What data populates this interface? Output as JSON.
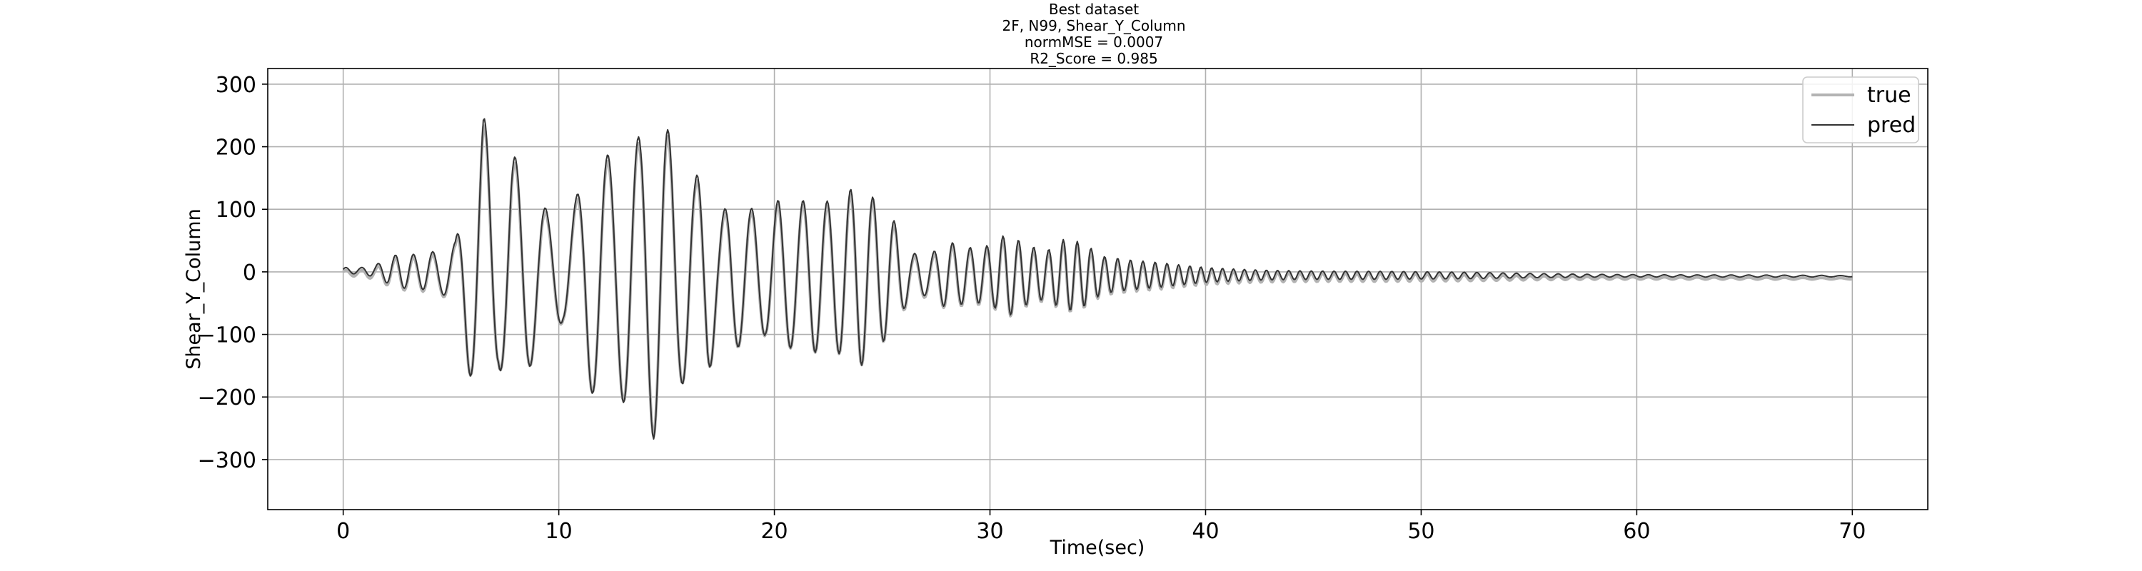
{
  "chart_data": {
    "type": "line",
    "title_lines": [
      "Best dataset",
      "2F, N99, Shear_Y_Column",
      "normMSE = 0.0007",
      "R2_Score = 0.985"
    ],
    "xlabel": "Time(sec)",
    "ylabel": "Shear_Y_Column",
    "xlim": [
      -3.5,
      73.5
    ],
    "ylim": [
      -380,
      325
    ],
    "x_ticks": [
      0,
      10,
      20,
      30,
      40,
      50,
      60,
      70
    ],
    "y_ticks": [
      300,
      200,
      100,
      0,
      -100,
      -200,
      -300
    ],
    "y_tick_labels": [
      "300",
      "200",
      "100",
      "0",
      "−100",
      "−200",
      "−300"
    ],
    "grid": true,
    "legend_position": "upper-right",
    "sample_step": 0.05,
    "x_range": [
      0,
      70
    ],
    "series": [
      {
        "name": "true",
        "color": "#b3b3b3",
        "style": "thick",
        "offset": -4
      },
      {
        "name": "pred",
        "color": "#333333",
        "style": "thin",
        "offset": 0
      }
    ],
    "envelope_points": [
      [
        0,
        5
      ],
      [
        0.8,
        5
      ],
      [
        1.5,
        10
      ],
      [
        2.5,
        28
      ],
      [
        3.5,
        30
      ],
      [
        4.5,
        40
      ],
      [
        5.2,
        60
      ],
      [
        5.8,
        200
      ],
      [
        6.5,
        350
      ],
      [
        7.2,
        220
      ],
      [
        7.8,
        290
      ],
      [
        8.5,
        250
      ],
      [
        9.5,
        150
      ],
      [
        10.2,
        120
      ],
      [
        10.8,
        180
      ],
      [
        11.4,
        270
      ],
      [
        11.9,
        280
      ],
      [
        12.5,
        240
      ],
      [
        13.2,
        270
      ],
      [
        13.8,
        260
      ],
      [
        14.4,
        300
      ],
      [
        14.8,
        280
      ],
      [
        15.6,
        190
      ],
      [
        16.3,
        160
      ],
      [
        16.9,
        170
      ],
      [
        17.4,
        90
      ],
      [
        18,
        120
      ],
      [
        18.8,
        110
      ],
      [
        19.6,
        100
      ],
      [
        20.2,
        130
      ],
      [
        21,
        130
      ],
      [
        21.8,
        150
      ],
      [
        22.6,
        150
      ],
      [
        23.3,
        180
      ],
      [
        24,
        210
      ],
      [
        24.8,
        175
      ],
      [
        25.5,
        140
      ],
      [
        26.3,
        55
      ],
      [
        27.2,
        50
      ],
      [
        28,
        80
      ],
      [
        29,
        60
      ],
      [
        30,
        60
      ],
      [
        30.8,
        80
      ],
      [
        31.6,
        55
      ],
      [
        32.6,
        40
      ],
      [
        33.5,
        60
      ],
      [
        34.4,
        50
      ],
      [
        35.2,
        30
      ],
      [
        36.5,
        25
      ],
      [
        38,
        22
      ],
      [
        40,
        16
      ],
      [
        43,
        12
      ],
      [
        46,
        9
      ],
      [
        50,
        6
      ],
      [
        55,
        4
      ],
      [
        60,
        3
      ],
      [
        65,
        2
      ],
      [
        70,
        1
      ]
    ],
    "mean_drift_points": [
      [
        0,
        2
      ],
      [
        5,
        0
      ],
      [
        20,
        -5
      ],
      [
        40,
        -5
      ],
      [
        70,
        -7
      ]
    ],
    "period_points": [
      [
        0,
        0.7
      ],
      [
        4,
        0.9
      ],
      [
        6,
        1.4
      ],
      [
        12,
        1.45
      ],
      [
        20,
        1.2
      ],
      [
        25,
        1.0
      ],
      [
        30,
        0.75
      ],
      [
        40,
        0.5
      ],
      [
        50,
        0.55
      ],
      [
        70,
        0.9
      ]
    ]
  }
}
